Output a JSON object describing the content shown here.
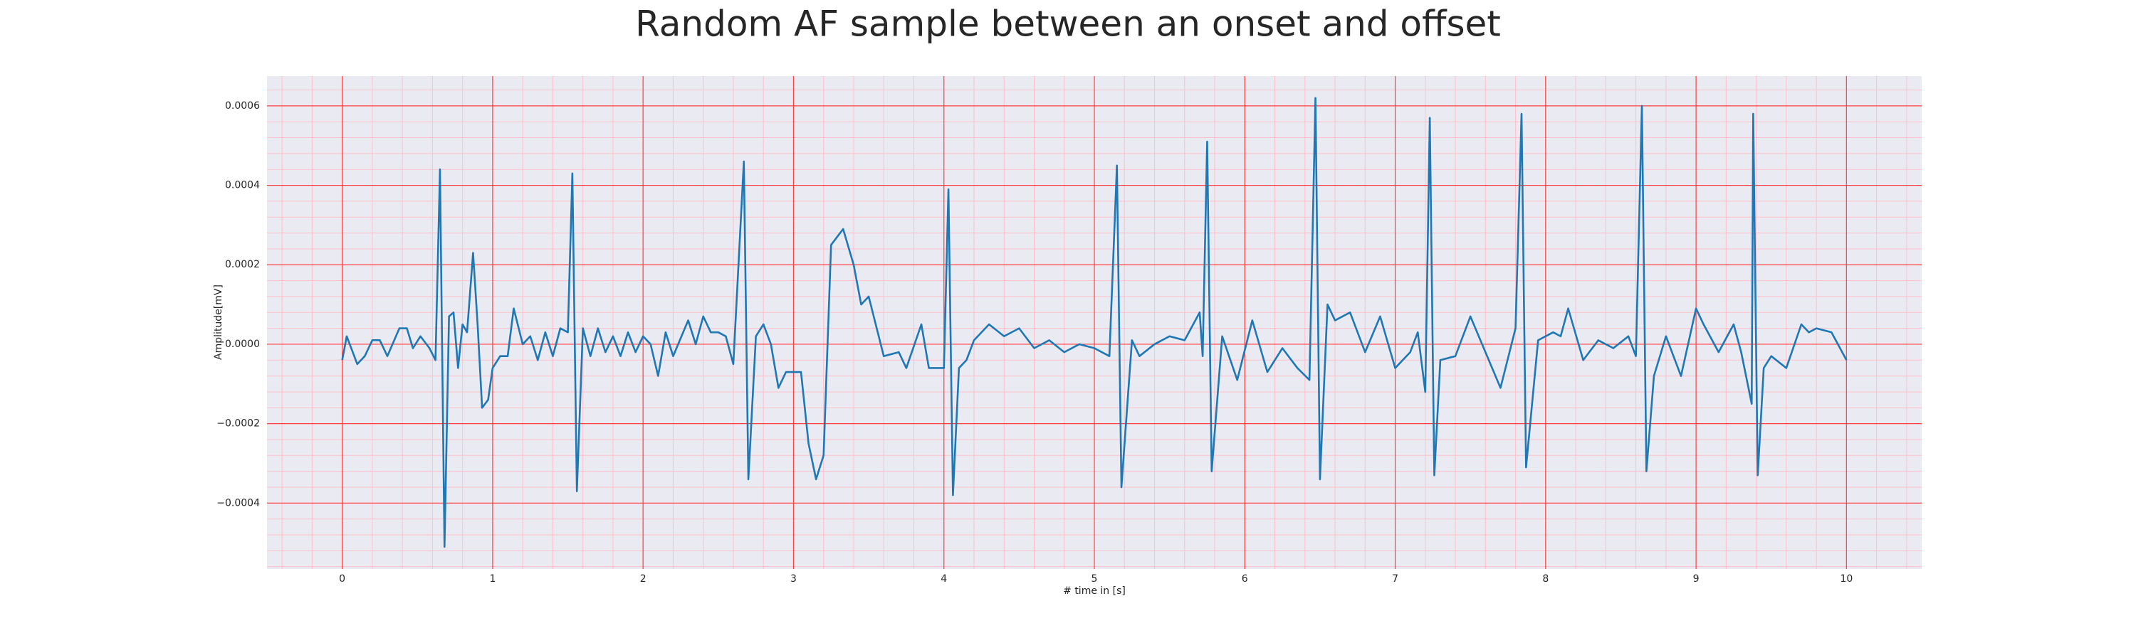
{
  "chart_data": {
    "type": "line",
    "title": "Random AF sample between an onset and offset",
    "x_label": "# time in [s]",
    "y_label": "Amplitude[mV]",
    "color": "#1f77b4",
    "grid": true,
    "minor_grid": {
      "x": 0.2,
      "y": 4e-05
    },
    "xlim": [
      -0.5,
      10.5
    ],
    "ylim": [
      -0.000566,
      0.000675
    ],
    "xticks": [
      0,
      1,
      2,
      3,
      4,
      5,
      6,
      7,
      8,
      9,
      10
    ],
    "yticks": [
      {
        "value": -0.0004,
        "label": "−0.0004"
      },
      {
        "value": -0.0002,
        "label": "−0.0002"
      },
      {
        "value": 0,
        "label": "0.0000"
      },
      0.0002,
      0.0004,
      0.0006
    ],
    "x": [
      0,
      0.03,
      0.1,
      0.15,
      0.2,
      0.25,
      0.3,
      0.38,
      0.43,
      0.47,
      0.52,
      0.58,
      0.62,
      0.65,
      0.68,
      0.71,
      0.74,
      0.77,
      0.8,
      0.83,
      0.87,
      0.9,
      0.93,
      0.97,
      1.0,
      1.05,
      1.1,
      1.14,
      1.2,
      1.25,
      1.3,
      1.35,
      1.4,
      1.45,
      1.5,
      1.53,
      1.56,
      1.6,
      1.65,
      1.7,
      1.75,
      1.8,
      1.85,
      1.9,
      1.95,
      2.0,
      2.05,
      2.1,
      2.15,
      2.2,
      2.3,
      2.35,
      2.4,
      2.45,
      2.5,
      2.55,
      2.6,
      2.67,
      2.7,
      2.75,
      2.8,
      2.85,
      2.9,
      2.95,
      3.05,
      3.1,
      3.15,
      3.2,
      3.25,
      3.33,
      3.4,
      3.45,
      3.5,
      3.6,
      3.7,
      3.75,
      3.85,
      3.9,
      4.0,
      4.03,
      4.06,
      4.1,
      4.15,
      4.2,
      4.3,
      4.4,
      4.5,
      4.6,
      4.7,
      4.8,
      4.9,
      5.0,
      5.1,
      5.15,
      5.18,
      5.25,
      5.3,
      5.4,
      5.5,
      5.6,
      5.7,
      5.72,
      5.75,
      5.78,
      5.85,
      5.95,
      6.05,
      6.15,
      6.25,
      6.35,
      6.43,
      6.47,
      6.5,
      6.55,
      6.6,
      6.7,
      6.8,
      6.9,
      7.0,
      7.1,
      7.15,
      7.2,
      7.23,
      7.26,
      7.3,
      7.4,
      7.5,
      7.6,
      7.7,
      7.8,
      7.84,
      7.87,
      7.95,
      8.05,
      8.1,
      8.15,
      8.25,
      8.35,
      8.45,
      8.55,
      8.6,
      8.64,
      8.67,
      8.72,
      8.8,
      8.9,
      9.0,
      9.05,
      9.15,
      9.25,
      9.3,
      9.37,
      9.38,
      9.41,
      9.45,
      9.5,
      9.6,
      9.7,
      9.75,
      9.8,
      9.9,
      10.0
    ],
    "series": [
      {
        "name": "signal",
        "color": "#1f77b4",
        "values": [
          -4e-05,
          2e-05,
          -5e-05,
          -3e-05,
          1e-05,
          1e-05,
          -3e-05,
          4e-05,
          4e-05,
          -1e-05,
          2e-05,
          -1e-05,
          -4e-05,
          0.00044,
          -0.00051,
          7e-05,
          8e-05,
          -6e-05,
          5e-05,
          3e-05,
          0.00023,
          5e-05,
          -0.00016,
          -0.00014,
          -6e-05,
          -3e-05,
          -3e-05,
          9e-05,
          0.0,
          2e-05,
          -4e-05,
          3e-05,
          -3e-05,
          4e-05,
          3e-05,
          0.00043,
          -0.00037,
          4e-05,
          -3e-05,
          4e-05,
          -2e-05,
          2e-05,
          -3e-05,
          3e-05,
          -2e-05,
          2e-05,
          0.0,
          -8e-05,
          3e-05,
          -3e-05,
          6e-05,
          0.0,
          7e-05,
          3e-05,
          3e-05,
          2e-05,
          -5e-05,
          0.00046,
          -0.00034,
          2e-05,
          5e-05,
          0.0,
          -0.00011,
          -7e-05,
          -7e-05,
          -0.00025,
          -0.00034,
          -0.00028,
          0.00025,
          0.00029,
          0.0002,
          0.0001,
          0.00012,
          -3e-05,
          -2e-05,
          -6e-05,
          5e-05,
          -6e-05,
          -6e-05,
          0.00039,
          -0.00038,
          -6e-05,
          -4e-05,
          1e-05,
          5e-05,
          2e-05,
          4e-05,
          -1e-05,
          1e-05,
          -2e-05,
          0.0,
          -1e-05,
          -3e-05,
          0.00045,
          -0.00036,
          1e-05,
          -3e-05,
          0.0,
          2e-05,
          1e-05,
          8e-05,
          -3e-05,
          0.00051,
          -0.00032,
          2e-05,
          -9e-05,
          6e-05,
          -7e-05,
          -1e-05,
          -6e-05,
          -9e-05,
          0.00062,
          -0.00034,
          0.0001,
          6e-05,
          8e-05,
          -2e-05,
          7e-05,
          -6e-05,
          -2e-05,
          3e-05,
          -0.00012,
          0.00057,
          -0.00033,
          -4e-05,
          -3e-05,
          7e-05,
          -2e-05,
          -0.00011,
          4e-05,
          0.00058,
          -0.00031,
          1e-05,
          3e-05,
          2e-05,
          9e-05,
          -4e-05,
          1e-05,
          -1e-05,
          2e-05,
          -3e-05,
          0.0006,
          -0.00032,
          -8e-05,
          2e-05,
          -8e-05,
          9e-05,
          5e-05,
          -2e-05,
          5e-05,
          -2e-05,
          -0.00015,
          0.00058,
          -0.00033,
          -6e-05,
          -3e-05,
          -6e-05,
          5e-05,
          3e-05,
          4e-05,
          3e-05,
          -4e-05
        ]
      }
    ]
  }
}
